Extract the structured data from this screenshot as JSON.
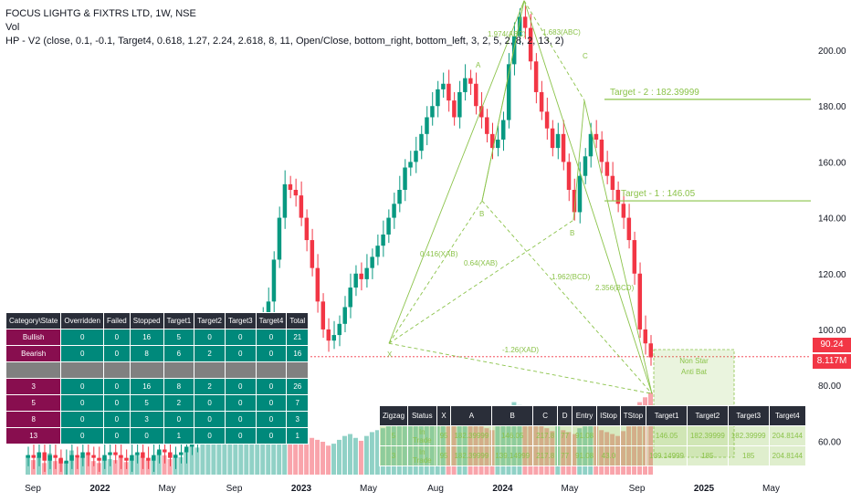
{
  "header": {
    "title": "FOCUS LIGHTG & FIXTRS LTD, 1W, NSE",
    "vol_label": "Vol",
    "indicator": "HP - V2 (close, 0.1, -0.1, Target4, 0.618, 1.27, 2.24, 2.618, 8, 11, Open/Close, bottom_right, bottom_left, 3, 2, 5, 2, 8, 2, 13, 2)"
  },
  "price_tags": {
    "last": "90.24",
    "volume": "8.117M"
  },
  "colors": {
    "up": "#089981",
    "down": "#f23645",
    "pattern": "#8bc34a",
    "table_magenta": "#880e4f",
    "table_teal": "#00897b"
  },
  "stats_table": {
    "headers": [
      "Category\\State",
      "Overridden",
      "Failed",
      "Stopped",
      "Target1",
      "Target2",
      "Target3",
      "Target4",
      "Total"
    ],
    "rows": [
      [
        "Bullish",
        "0",
        "0",
        "16",
        "5",
        "0",
        "0",
        "0",
        "21"
      ],
      [
        "Bearish",
        "0",
        "0",
        "8",
        "6",
        "2",
        "0",
        "0",
        "16"
      ],
      [
        "",
        "",
        "",
        "",
        "",
        "",
        "",
        "",
        ""
      ],
      [
        "3",
        "0",
        "0",
        "16",
        "8",
        "2",
        "0",
        "0",
        "26"
      ],
      [
        "5",
        "0",
        "0",
        "5",
        "2",
        "0",
        "0",
        "0",
        "7"
      ],
      [
        "8",
        "0",
        "0",
        "3",
        "0",
        "0",
        "0",
        "0",
        "3"
      ],
      [
        "13",
        "0",
        "0",
        "0",
        "1",
        "0",
        "0",
        "0",
        "1"
      ]
    ]
  },
  "zigzag_table": {
    "headers": [
      "Zigzag",
      "Status",
      "X",
      "A",
      "B",
      "C",
      "D",
      "Entry",
      "IStop",
      "TStop",
      "Target1",
      "Target2",
      "Target3",
      "Target4"
    ],
    "rows": [
      [
        "5",
        "In Trade",
        "95",
        "182.39999",
        "146.05",
        "217.8",
        "77",
        "91.08",
        "",
        "",
        "146.05",
        "182.39999",
        "182.39999",
        "204.8144"
      ],
      [
        "3",
        "In Trade",
        "95",
        "182.39999",
        "139.14999",
        "217.8",
        "77",
        "91.08",
        "43.0",
        "",
        "139.14999",
        "185",
        "185",
        "204.8144"
      ]
    ]
  },
  "annotations": {
    "target2": "Target - 2 : 182.39999",
    "target1": "Target - 1 : 146.05",
    "pattern_name": "Non Star\nAnti Bat",
    "abc": "1.974(ABC)",
    "abc2": "1.683(ABC)",
    "xab1": "0.416(XAB)",
    "xab2": "0.64(XAB)",
    "bcd1": "1.962(BCD)",
    "bcd2": "2.356(BCD)",
    "xad": "-1.26(XAD)",
    "a": "A",
    "b": "B",
    "c": "C",
    "x": "X",
    "b2": "B"
  },
  "chart_data": {
    "type": "candlestick",
    "xlabel": "",
    "ylabel": "",
    "ylim": [
      48,
      218
    ],
    "y_ticks": [
      60,
      80,
      100,
      120,
      140,
      160,
      180,
      200
    ],
    "x_tick_labels": [
      "Sep",
      "2022",
      "May",
      "Sep",
      "2023",
      "May",
      "Aug",
      "2024",
      "May",
      "Sep",
      "2025",
      "May"
    ],
    "series": [
      {
        "name": "price",
        "close": [
          55,
          54,
          56,
          53,
          55,
          54,
          52,
          53,
          55,
          54,
          56,
          55,
          54,
          53,
          55,
          56,
          55,
          54,
          53,
          55,
          56,
          54,
          53,
          55,
          57,
          56,
          54,
          55,
          56,
          58,
          60,
          62,
          64,
          68,
          72,
          76,
          80,
          84,
          88,
          92,
          95,
          98,
          100,
          104,
          110,
          125,
          140,
          152,
          150,
          148,
          140,
          132,
          122,
          110,
          100,
          96,
          98,
          102,
          108,
          115,
          120,
          118,
          122,
          126,
          130,
          134,
          140,
          145,
          150,
          158,
          160,
          164,
          170,
          176,
          180,
          186,
          188,
          182,
          176,
          185,
          190,
          188,
          180,
          176,
          170,
          165,
          168,
          175,
          195,
          205,
          212,
          208,
          196,
          185,
          178,
          172,
          165,
          170,
          160,
          150,
          142,
          155,
          162,
          170,
          168,
          160,
          155,
          150,
          145,
          140,
          132,
          120,
          100,
          95,
          90
        ],
        "volume": [
          20,
          15,
          18,
          12,
          22,
          14,
          16,
          13,
          25,
          17,
          19,
          21,
          14,
          12,
          18,
          16,
          15,
          20,
          13,
          17,
          22,
          19,
          15,
          18,
          24,
          20,
          16,
          21,
          18,
          26,
          30,
          28,
          35,
          40,
          45,
          38,
          42,
          36,
          48,
          50,
          40,
          44,
          39,
          46,
          60,
          75,
          80,
          65,
          55,
          50,
          45,
          42,
          38,
          36,
          34,
          30,
          32,
          36,
          40,
          42,
          38,
          35,
          40,
          44,
          46,
          48,
          52,
          50,
          54,
          58,
          55,
          60,
          62,
          58,
          56,
          64,
          60,
          55,
          52,
          58,
          62,
          60,
          55,
          50,
          48,
          46,
          50,
          56,
          70,
          75,
          72,
          68,
          60,
          55,
          52,
          48,
          45,
          50,
          46,
          44,
          42,
          48,
          50,
          52,
          50,
          46,
          44,
          42,
          40,
          45,
          50,
          60,
          75,
          80,
          85
        ]
      }
    ],
    "targets": [
      {
        "label": "Target - 2",
        "value": 182.39999
      },
      {
        "label": "Target - 1",
        "value": 146.05
      }
    ],
    "last_price": 90.24,
    "pattern_points": {
      "X": 95,
      "A": 182.39999,
      "B": 146.05,
      "C": 217.8,
      "D": 77
    }
  }
}
